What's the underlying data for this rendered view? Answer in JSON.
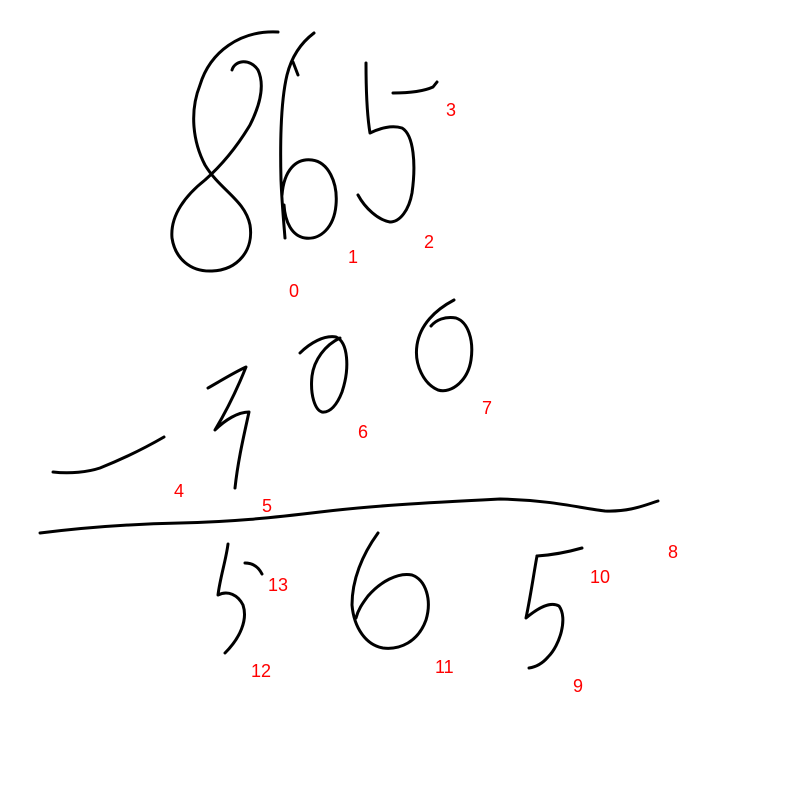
{
  "colors": {
    "background": "#ffffff",
    "ink": "#000000",
    "label": "#ff0000"
  },
  "stroke_labels": [
    "0",
    "1",
    "2",
    "3",
    "4",
    "5",
    "6",
    "7",
    "8",
    "9",
    "10",
    "11",
    "12",
    "13"
  ]
}
